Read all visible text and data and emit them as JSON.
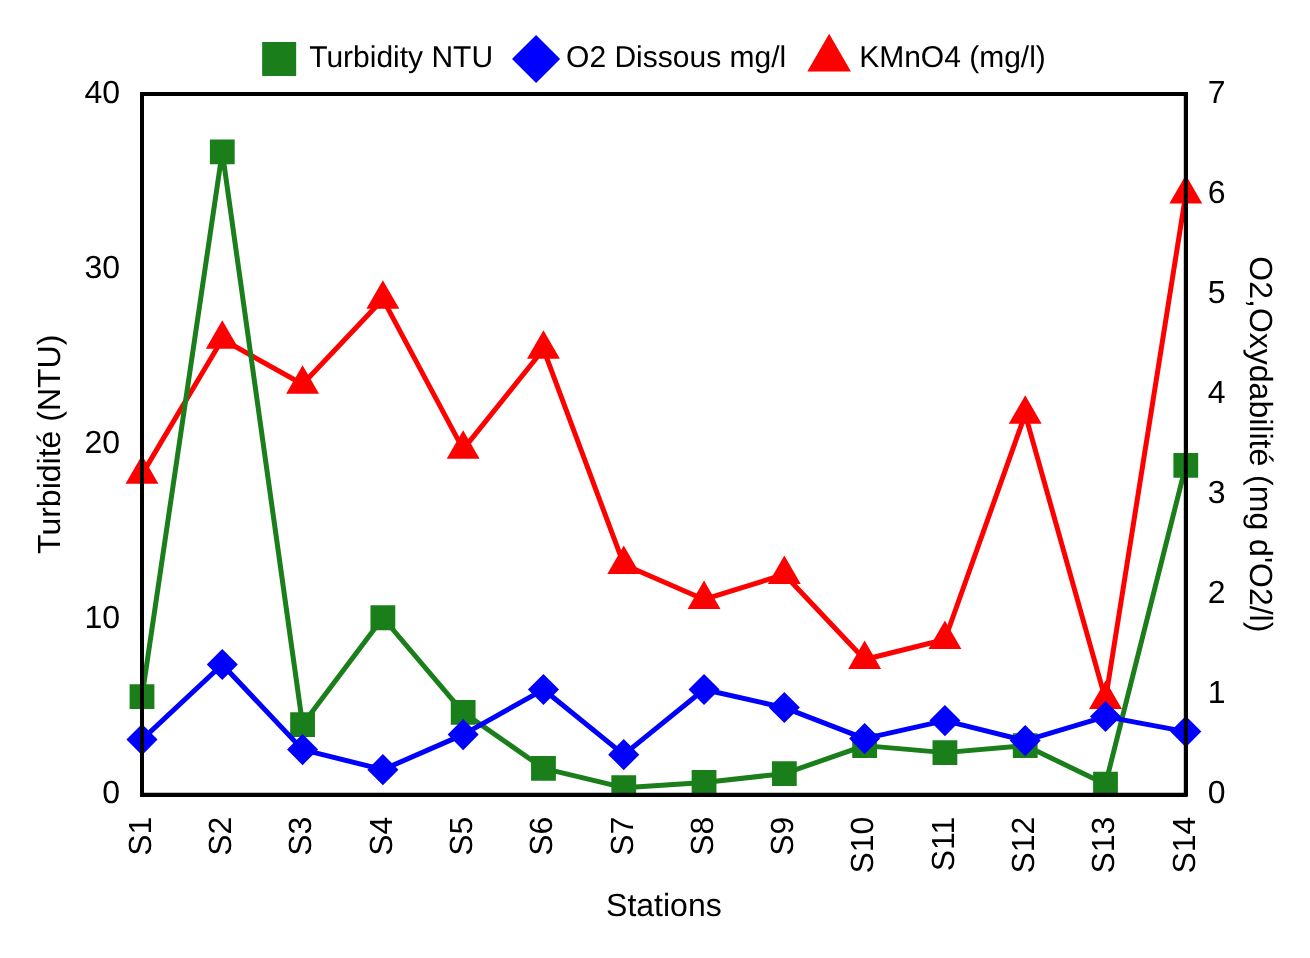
{
  "chart_data": {
    "type": "line",
    "xlabel": "Stations",
    "ylabel": "Turbidité (NTU)",
    "y2label": "O2,Oxydabilité (mg d'O2/l)",
    "categories": [
      "S1",
      "S2",
      "S3",
      "S4",
      "S5",
      "S6",
      "S7",
      "S8",
      "S9",
      "S10",
      "S11",
      "S12",
      "S13",
      "S14"
    ],
    "series": [
      {
        "name": "Turbidity NTU",
        "color": "#1a7f1a",
        "marker": "square",
        "values": [
          5.6,
          36.7,
          4.0,
          10.1,
          4.7,
          1.5,
          0.4,
          0.7,
          1.2,
          2.8,
          2.4,
          2.8,
          0.6,
          18.8
        ]
      },
      {
        "name": "O2 Dissous mg/l",
        "color": "#0000ff",
        "marker": "diamond",
        "axis": "y2",
        "values": [
          0.55,
          1.3,
          0.45,
          0.25,
          0.6,
          1.05,
          0.4,
          1.05,
          0.87,
          0.56,
          0.74,
          0.54,
          0.78,
          0.63
        ]
      },
      {
        "name": "KMnO4 (mg/l)",
        "color": "#ff0000",
        "marker": "triangle",
        "axis": "y2",
        "values": [
          3.2,
          4.55,
          4.1,
          4.95,
          3.45,
          4.45,
          2.3,
          1.95,
          2.2,
          1.35,
          1.55,
          3.8,
          0.95,
          6.0
        ]
      }
    ],
    "ylim": [
      0,
      40
    ],
    "yticks": [
      0,
      10,
      20,
      30,
      40
    ],
    "y2lim": [
      0,
      7
    ],
    "y2ticks": [
      0,
      1,
      2,
      3,
      4,
      5,
      6,
      7
    ],
    "grid": false,
    "legend": "top"
  }
}
